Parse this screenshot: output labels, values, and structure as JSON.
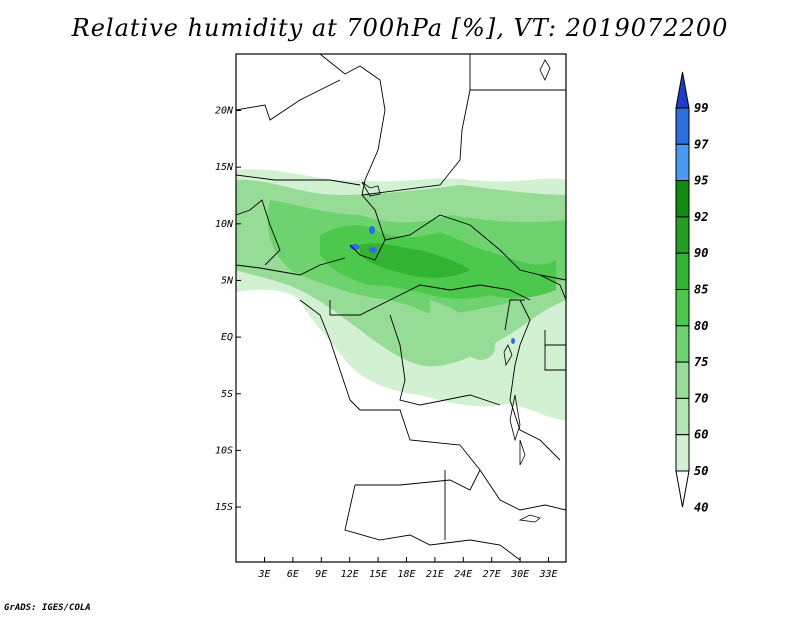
{
  "title": "Relative humidity at 700hPa [%], VT: 2019072200",
  "credit": "GrADS: IGES/COLA",
  "map": {
    "lat_range": [
      -20,
      25
    ],
    "lon_range": [
      0,
      35
    ],
    "lat_labels": [
      "20N",
      "15N",
      "10N",
      "5N",
      "EQ",
      "5S",
      "10S",
      "15S"
    ],
    "lon_labels": [
      "3E",
      "6E",
      "9E",
      "12E",
      "15E",
      "18E",
      "21E",
      "24E",
      "27E",
      "30E",
      "33E"
    ],
    "field": "relative humidity",
    "level": "700hPa"
  },
  "colorbar": {
    "labels": [
      "99",
      "97",
      "95",
      "92",
      "90",
      "85",
      "80",
      "75",
      "70",
      "60",
      "50",
      "40"
    ],
    "colors": [
      "#1e3cc8",
      "#2d6ee0",
      "#4a9bf0",
      "#0f8c0f",
      "#23a023",
      "#32b432",
      "#4cc84c",
      "#6ed26e",
      "#96dc96",
      "#b4e6b4",
      "#d2f0d2",
      "#ebf9eb"
    ]
  }
}
